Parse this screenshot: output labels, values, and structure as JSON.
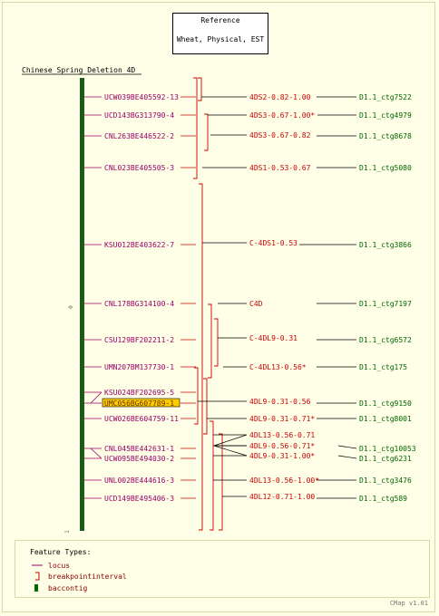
{
  "reference": {
    "line1": "Reference",
    "line2": "Wheat, Physical, EST"
  },
  "map_title": "Chinese_Spring_Deletion_4D",
  "axis": {
    "top_label": "0",
    "bottom_label": "1"
  },
  "colors": {
    "locus": "#990066",
    "interval": "#cc0000",
    "contig": "#006600",
    "backbone": "#1a5a1a",
    "highlight": "#ffcc00"
  },
  "loci": [
    {
      "name": "UCW039BE405592-13",
      "highlight": false
    },
    {
      "name": "UCD143BG313790-4",
      "highlight": false
    },
    {
      "name": "CNL263BE446522-2",
      "highlight": false
    },
    {
      "name": "CNL023BE405505-3",
      "highlight": false
    },
    {
      "name": "KSU012BE403622-7",
      "highlight": false
    },
    {
      "name": "CNL178BG314100-4",
      "highlight": false
    },
    {
      "name": "CSU129BF202211-2",
      "highlight": false
    },
    {
      "name": "UMN207BM137730-1",
      "highlight": false
    },
    {
      "name": "KSU024BF202695-5",
      "highlight": false
    },
    {
      "name": "UMC056BG607789-1",
      "highlight": true
    },
    {
      "name": "UCW026BE604759-11",
      "highlight": false
    },
    {
      "name": "CNL045BE442631-1",
      "highlight": false
    },
    {
      "name": "UCW095BE494030-2",
      "highlight": false
    },
    {
      "name": "UNL002BE444616-3",
      "highlight": false
    },
    {
      "name": "UCD149BE495406-3",
      "highlight": false
    }
  ],
  "intervals": [
    "4DS2-0.82-1.00",
    "4DS3-0.67-1.00*",
    "4DS3-0.67-0.82",
    "4DS1-0.53-0.67",
    "C-4DS1-0.53",
    "C4D",
    "C-4DL9-0.31",
    "C-4DL13-0.56*",
    "4DL9-0.31-0.56",
    "4DL9-0.31-0.71*",
    "4DL13-0.56-0.71",
    "4DL9-0.56-0.71*",
    "4DL9-0.31-1.00*",
    "4DL13-0.56-1.00*",
    "4DL12-0.71-1.00"
  ],
  "contigs": [
    "D1.1_ctg7522",
    "D1.1_ctg4979",
    "D1.1_ctg8678",
    "D1.1_ctg5080",
    "D1.1_ctg3866",
    "D1.1_ctg7197",
    "D1.1_ctg6572",
    "D1.1_ctg175",
    "D1.1_ctg9150",
    "D1.1_ctg8001",
    "D1.1_ctg10053",
    "D1.1_ctg6231",
    "D1.1_ctg3476",
    "D1.1_ctg589"
  ],
  "legend": {
    "title": "Feature Types:",
    "items": [
      {
        "label": "locus",
        "icon": "line-icon"
      },
      {
        "label": "breakpointinterval",
        "icon": "bracket-icon"
      },
      {
        "label": "baccontig",
        "icon": "bar-icon"
      }
    ]
  },
  "footer": "CMap v1.01"
}
